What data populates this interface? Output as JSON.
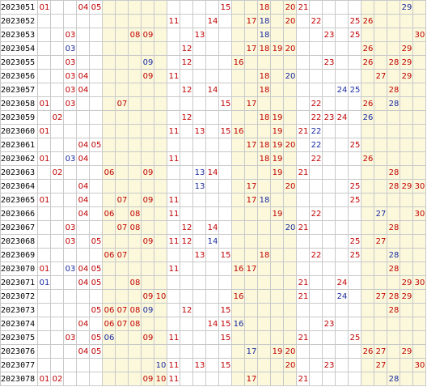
{
  "colors": {
    "red": "#c00000",
    "blue": "#1a2aa0",
    "band": "#fbf8dc",
    "grid": "#c9c9c9"
  },
  "rows": [
    {
      "issue": "2023051",
      "cells": [
        {
          "n": "01",
          "c": "red"
        },
        {
          "n": "04",
          "c": "red"
        },
        {
          "n": "05",
          "c": "red"
        },
        {
          "n": "15",
          "c": "red"
        },
        {
          "n": "18",
          "c": "red"
        },
        {
          "n": "20",
          "c": "red"
        },
        {
          "n": "21",
          "c": "red"
        },
        {
          "n": "29",
          "c": "blue"
        }
      ]
    },
    {
      "issue": "2023052",
      "cells": [
        {
          "n": "11",
          "c": "red"
        },
        {
          "n": "14",
          "c": "red"
        },
        {
          "n": "17",
          "c": "red"
        },
        {
          "n": "18",
          "c": "blue"
        },
        {
          "n": "20",
          "c": "red"
        },
        {
          "n": "22",
          "c": "red"
        },
        {
          "n": "25",
          "c": "red"
        },
        {
          "n": "26",
          "c": "red"
        }
      ]
    },
    {
      "issue": "2023053",
      "cells": [
        {
          "n": "03",
          "c": "red"
        },
        {
          "n": "08",
          "c": "red"
        },
        {
          "n": "09",
          "c": "red"
        },
        {
          "n": "13",
          "c": "red"
        },
        {
          "n": "18",
          "c": "blue"
        },
        {
          "n": "23",
          "c": "red"
        },
        {
          "n": "25",
          "c": "red"
        },
        {
          "n": "30",
          "c": "red"
        }
      ]
    },
    {
      "issue": "2023054",
      "cells": [
        {
          "n": "03",
          "c": "blue"
        },
        {
          "n": "12",
          "c": "red"
        },
        {
          "n": "17",
          "c": "red"
        },
        {
          "n": "18",
          "c": "red"
        },
        {
          "n": "19",
          "c": "red"
        },
        {
          "n": "20",
          "c": "red"
        },
        {
          "n": "26",
          "c": "red"
        },
        {
          "n": "29",
          "c": "red"
        }
      ]
    },
    {
      "issue": "2023055",
      "cells": [
        {
          "n": "03",
          "c": "red"
        },
        {
          "n": "09",
          "c": "blue"
        },
        {
          "n": "12",
          "c": "red"
        },
        {
          "n": "16",
          "c": "red"
        },
        {
          "n": "23",
          "c": "red"
        },
        {
          "n": "26",
          "c": "red"
        },
        {
          "n": "28",
          "c": "red"
        },
        {
          "n": "29",
          "c": "red"
        }
      ]
    },
    {
      "issue": "2023056",
      "cells": [
        {
          "n": "03",
          "c": "red"
        },
        {
          "n": "04",
          "c": "red"
        },
        {
          "n": "09",
          "c": "red"
        },
        {
          "n": "11",
          "c": "red"
        },
        {
          "n": "18",
          "c": "red"
        },
        {
          "n": "20",
          "c": "blue"
        },
        {
          "n": "27",
          "c": "red"
        },
        {
          "n": "29",
          "c": "red"
        }
      ]
    },
    {
      "issue": "2023057",
      "cells": [
        {
          "n": "03",
          "c": "red"
        },
        {
          "n": "04",
          "c": "red"
        },
        {
          "n": "12",
          "c": "red"
        },
        {
          "n": "14",
          "c": "red"
        },
        {
          "n": "18",
          "c": "red"
        },
        {
          "n": "24",
          "c": "blue"
        },
        {
          "n": "25",
          "c": "blue"
        },
        {
          "n": "28",
          "c": "red"
        }
      ]
    },
    {
      "issue": "2023058",
      "cells": [
        {
          "n": "01",
          "c": "red"
        },
        {
          "n": "03",
          "c": "red"
        },
        {
          "n": "07",
          "c": "red"
        },
        {
          "n": "15",
          "c": "red"
        },
        {
          "n": "17",
          "c": "red"
        },
        {
          "n": "22",
          "c": "red"
        },
        {
          "n": "26",
          "c": "red"
        },
        {
          "n": "28",
          "c": "blue"
        }
      ]
    },
    {
      "issue": "2023059",
      "cells": [
        {
          "n": "02",
          "c": "red"
        },
        {
          "n": "12",
          "c": "red"
        },
        {
          "n": "18",
          "c": "red"
        },
        {
          "n": "19",
          "c": "red"
        },
        {
          "n": "22",
          "c": "red"
        },
        {
          "n": "23",
          "c": "red"
        },
        {
          "n": "24",
          "c": "red"
        },
        {
          "n": "26",
          "c": "blue"
        }
      ]
    },
    {
      "issue": "2023060",
      "cells": [
        {
          "n": "01",
          "c": "red"
        },
        {
          "n": "11",
          "c": "red"
        },
        {
          "n": "13",
          "c": "red"
        },
        {
          "n": "15",
          "c": "red"
        },
        {
          "n": "16",
          "c": "red"
        },
        {
          "n": "19",
          "c": "red"
        },
        {
          "n": "21",
          "c": "red"
        },
        {
          "n": "22",
          "c": "blue"
        }
      ]
    },
    {
      "issue": "2023061",
      "cells": [
        {
          "n": "04",
          "c": "red"
        },
        {
          "n": "05",
          "c": "red"
        },
        {
          "n": "17",
          "c": "red"
        },
        {
          "n": "18",
          "c": "red"
        },
        {
          "n": "19",
          "c": "red"
        },
        {
          "n": "20",
          "c": "red"
        },
        {
          "n": "22",
          "c": "blue"
        },
        {
          "n": "25",
          "c": "red"
        }
      ]
    },
    {
      "issue": "2023062",
      "cells": [
        {
          "n": "01",
          "c": "red"
        },
        {
          "n": "03",
          "c": "blue"
        },
        {
          "n": "04",
          "c": "red"
        },
        {
          "n": "11",
          "c": "red"
        },
        {
          "n": "18",
          "c": "red"
        },
        {
          "n": "19",
          "c": "red"
        },
        {
          "n": "22",
          "c": "red"
        },
        {
          "n": "26",
          "c": "red"
        }
      ]
    },
    {
      "issue": "2023063",
      "cells": [
        {
          "n": "02",
          "c": "red"
        },
        {
          "n": "06",
          "c": "red"
        },
        {
          "n": "09",
          "c": "red"
        },
        {
          "n": "13",
          "c": "blue"
        },
        {
          "n": "14",
          "c": "red"
        },
        {
          "n": "19",
          "c": "red"
        },
        {
          "n": "21",
          "c": "red"
        },
        {
          "n": "28",
          "c": "red"
        }
      ]
    },
    {
      "issue": "2023064",
      "cells": [
        {
          "n": "04",
          "c": "red"
        },
        {
          "n": "13",
          "c": "blue"
        },
        {
          "n": "17",
          "c": "red"
        },
        {
          "n": "20",
          "c": "red"
        },
        {
          "n": "25",
          "c": "red"
        },
        {
          "n": "28",
          "c": "red"
        },
        {
          "n": "29",
          "c": "red"
        },
        {
          "n": "30",
          "c": "red"
        }
      ]
    },
    {
      "issue": "2023065",
      "cells": [
        {
          "n": "01",
          "c": "red"
        },
        {
          "n": "04",
          "c": "red"
        },
        {
          "n": "07",
          "c": "red"
        },
        {
          "n": "09",
          "c": "red"
        },
        {
          "n": "11",
          "c": "red"
        },
        {
          "n": "17",
          "c": "red"
        },
        {
          "n": "18",
          "c": "blue"
        },
        {
          "n": "25",
          "c": "red"
        }
      ]
    },
    {
      "issue": "2023066",
      "cells": [
        {
          "n": "04",
          "c": "red"
        },
        {
          "n": "06",
          "c": "red"
        },
        {
          "n": "08",
          "c": "red"
        },
        {
          "n": "11",
          "c": "red"
        },
        {
          "n": "19",
          "c": "red"
        },
        {
          "n": "22",
          "c": "red"
        },
        {
          "n": "27",
          "c": "blue"
        },
        {
          "n": "30",
          "c": "red"
        }
      ]
    },
    {
      "issue": "2023067",
      "cells": [
        {
          "n": "03",
          "c": "red"
        },
        {
          "n": "07",
          "c": "red"
        },
        {
          "n": "08",
          "c": "red"
        },
        {
          "n": "12",
          "c": "red"
        },
        {
          "n": "14",
          "c": "red"
        },
        {
          "n": "20",
          "c": "blue"
        },
        {
          "n": "21",
          "c": "red"
        },
        {
          "n": "28",
          "c": "red"
        }
      ]
    },
    {
      "issue": "2023068",
      "cells": [
        {
          "n": "03",
          "c": "red"
        },
        {
          "n": "05",
          "c": "red"
        },
        {
          "n": "09",
          "c": "red"
        },
        {
          "n": "11",
          "c": "red"
        },
        {
          "n": "12",
          "c": "red"
        },
        {
          "n": "14",
          "c": "blue"
        },
        {
          "n": "25",
          "c": "red"
        },
        {
          "n": "27",
          "c": "red"
        }
      ]
    },
    {
      "issue": "2023069",
      "cells": [
        {
          "n": "06",
          "c": "red"
        },
        {
          "n": "07",
          "c": "red"
        },
        {
          "n": "13",
          "c": "red"
        },
        {
          "n": "15",
          "c": "red"
        },
        {
          "n": "18",
          "c": "red"
        },
        {
          "n": "22",
          "c": "red"
        },
        {
          "n": "25",
          "c": "red"
        },
        {
          "n": "28",
          "c": "blue"
        }
      ]
    },
    {
      "issue": "2023070",
      "cells": [
        {
          "n": "01",
          "c": "red"
        },
        {
          "n": "03",
          "c": "blue"
        },
        {
          "n": "04",
          "c": "red"
        },
        {
          "n": "05",
          "c": "red"
        },
        {
          "n": "11",
          "c": "red"
        },
        {
          "n": "16",
          "c": "red"
        },
        {
          "n": "17",
          "c": "red"
        },
        {
          "n": "28",
          "c": "red"
        }
      ]
    },
    {
      "issue": "2023071",
      "cells": [
        {
          "n": "01",
          "c": "blue"
        },
        {
          "n": "04",
          "c": "red"
        },
        {
          "n": "05",
          "c": "red"
        },
        {
          "n": "08",
          "c": "red"
        },
        {
          "n": "21",
          "c": "red"
        },
        {
          "n": "24",
          "c": "red"
        },
        {
          "n": "29",
          "c": "red"
        },
        {
          "n": "30",
          "c": "red"
        }
      ]
    },
    {
      "issue": "2023072",
      "cells": [
        {
          "n": "09",
          "c": "red"
        },
        {
          "n": "10",
          "c": "red"
        },
        {
          "n": "16",
          "c": "red"
        },
        {
          "n": "21",
          "c": "red"
        },
        {
          "n": "24",
          "c": "blue"
        },
        {
          "n": "27",
          "c": "red"
        },
        {
          "n": "28",
          "c": "red"
        },
        {
          "n": "29",
          "c": "red"
        }
      ]
    },
    {
      "issue": "2023073",
      "cells": [
        {
          "n": "05",
          "c": "red"
        },
        {
          "n": "06",
          "c": "red"
        },
        {
          "n": "07",
          "c": "red"
        },
        {
          "n": "08",
          "c": "red"
        },
        {
          "n": "09",
          "c": "blue"
        },
        {
          "n": "12",
          "c": "red"
        },
        {
          "n": "15",
          "c": "red"
        },
        {
          "n": "28",
          "c": "red"
        }
      ]
    },
    {
      "issue": "2023074",
      "cells": [
        {
          "n": "04",
          "c": "red"
        },
        {
          "n": "06",
          "c": "red"
        },
        {
          "n": "07",
          "c": "red"
        },
        {
          "n": "08",
          "c": "red"
        },
        {
          "n": "14",
          "c": "red"
        },
        {
          "n": "15",
          "c": "red"
        },
        {
          "n": "16",
          "c": "blue"
        },
        {
          "n": "23",
          "c": "red"
        }
      ]
    },
    {
      "issue": "2023075",
      "cells": [
        {
          "n": "03",
          "c": "red"
        },
        {
          "n": "05",
          "c": "red"
        },
        {
          "n": "06",
          "c": "blue"
        },
        {
          "n": "09",
          "c": "red"
        },
        {
          "n": "11",
          "c": "red"
        },
        {
          "n": "15",
          "c": "red"
        },
        {
          "n": "21",
          "c": "red"
        },
        {
          "n": "25",
          "c": "red"
        }
      ]
    },
    {
      "issue": "2023076",
      "cells": [
        {
          "n": "04",
          "c": "red"
        },
        {
          "n": "05",
          "c": "red"
        },
        {
          "n": "17",
          "c": "blue"
        },
        {
          "n": "19",
          "c": "red"
        },
        {
          "n": "20",
          "c": "red"
        },
        {
          "n": "26",
          "c": "red"
        },
        {
          "n": "27",
          "c": "red"
        },
        {
          "n": "29",
          "c": "red"
        }
      ]
    },
    {
      "issue": "2023077",
      "cells": [
        {
          "n": "10",
          "c": "blue"
        },
        {
          "n": "11",
          "c": "red"
        },
        {
          "n": "13",
          "c": "red"
        },
        {
          "n": "15",
          "c": "red"
        },
        {
          "n": "20",
          "c": "red"
        },
        {
          "n": "23",
          "c": "red"
        },
        {
          "n": "27",
          "c": "red"
        },
        {
          "n": "30",
          "c": "red"
        }
      ]
    },
    {
      "issue": "2023078",
      "cells": [
        {
          "n": "01",
          "c": "red"
        },
        {
          "n": "02",
          "c": "red"
        },
        {
          "n": "09",
          "c": "red"
        },
        {
          "n": "10",
          "c": "red"
        },
        {
          "n": "11",
          "c": "red"
        },
        {
          "n": "17",
          "c": "red"
        },
        {
          "n": "21",
          "c": "red"
        },
        {
          "n": "28",
          "c": "blue"
        }
      ]
    }
  ]
}
